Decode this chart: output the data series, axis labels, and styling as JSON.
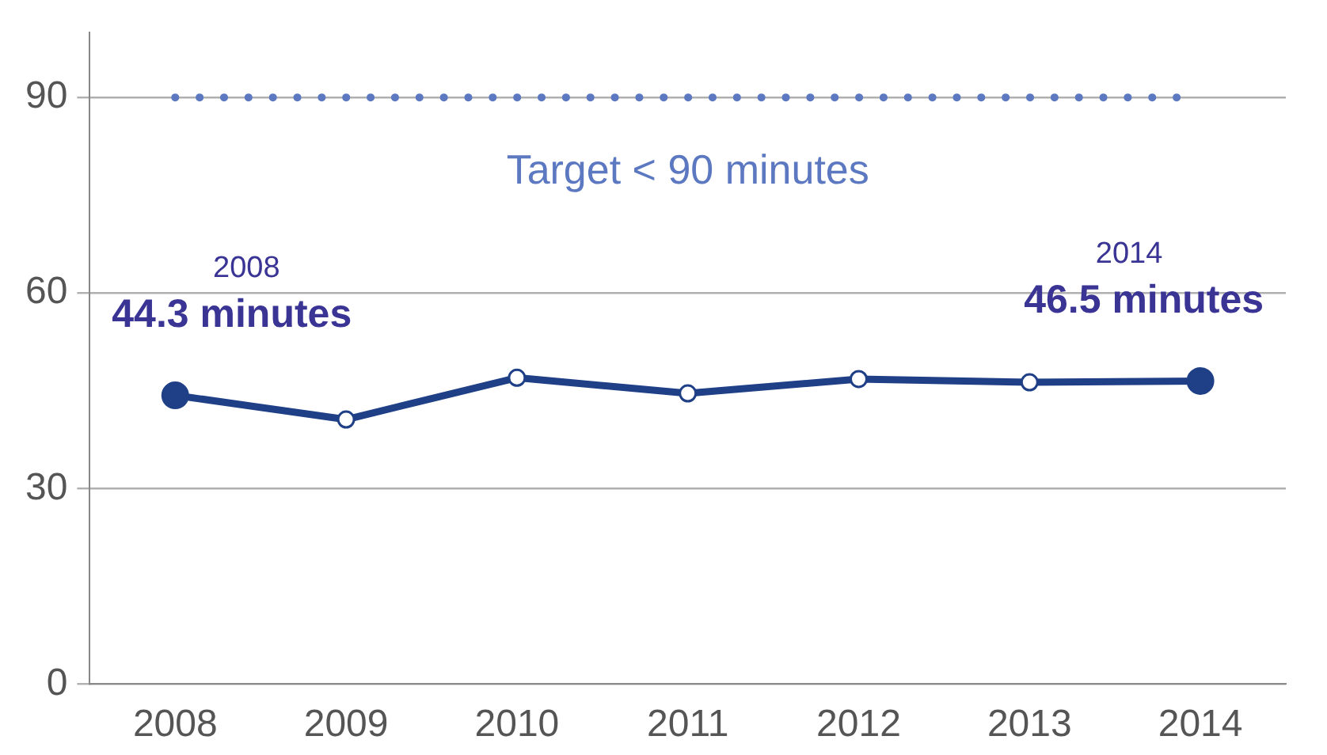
{
  "chart_data": {
    "type": "line",
    "categories": [
      "2008",
      "2009",
      "2010",
      "2011",
      "2012",
      "2013",
      "2014"
    ],
    "series": [
      {
        "color": "#1f3f86",
        "values": [
          44.3,
          40.6,
          47.0,
          44.6,
          46.8,
          46.3,
          46.5
        ],
        "value_labels": [
          "44.3 minutes",
          null,
          null,
          null,
          null,
          null,
          "46.5 minutes"
        ]
      }
    ],
    "ylim": [
      0,
      100
    ],
    "yticks": [
      0,
      30,
      60,
      90
    ],
    "grid": "y",
    "marker": "circle",
    "line_style": "solid",
    "legend": false,
    "ref_lines": [
      {
        "axis": "y",
        "value": 90,
        "label": "Target < 90 minutes",
        "color": "#5b78c0",
        "line_style": "dotted"
      }
    ],
    "annotations": [
      "2008",
      "2014"
    ]
  }
}
